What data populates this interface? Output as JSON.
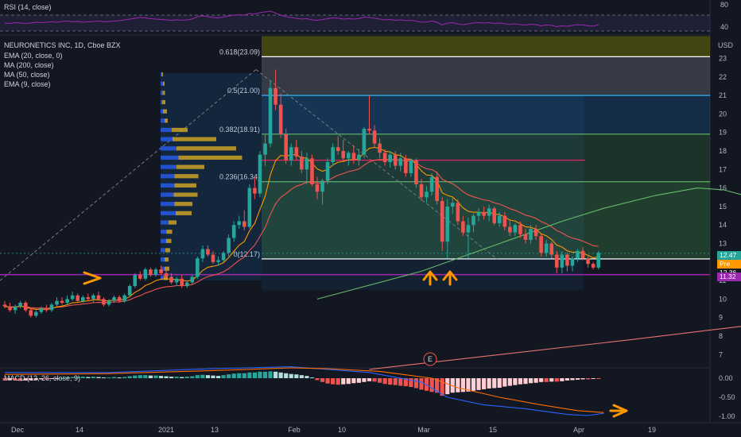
{
  "header": {
    "rsi_label": "RSI (14, close)",
    "symbol_label": "NEURONETICS INC, 1D, Cboe BZX",
    "indicators": [
      "EMA (20, close, 0)",
      "MA (200, close)",
      "MA (50, close)",
      "EMA (9, close)"
    ],
    "macd_label": "MACD (12, 26, close, 9)",
    "currency": "USD",
    "earnings_marker": "E"
  },
  "price_tags": {
    "last": "12.47",
    "pre_label": "Pre",
    "pre_value": "12.36",
    "support": "11.32"
  },
  "fib_labels": [
    {
      "text": "0.618(23.09)",
      "level": 23.09
    },
    {
      "text": "0.5(21.00)",
      "level": 21.0
    },
    {
      "text": "0.382(18.91)",
      "level": 18.91
    },
    {
      "text": "0.236(16.34)",
      "level": 16.34
    },
    {
      "text": "0(12.17)",
      "level": 12.17
    }
  ],
  "colors": {
    "up": "#26a69a",
    "down": "#ef5350",
    "ema20": "#ff9800",
    "ma200": "#e57373",
    "ma50": "#66bb6a",
    "ema9": "#ef5350",
    "rsi": "#9c27b0",
    "support": "#9c27b0",
    "arrow": "#ff9800"
  },
  "chart_data": {
    "type": "candlestick",
    "x_axis": {
      "ticks": [
        "Dec",
        "14",
        "2021",
        "13",
        "Feb",
        "10",
        "Mar",
        "15",
        "Apr",
        "19"
      ]
    },
    "price_axis": {
      "ticks": [
        "7",
        "8",
        "9",
        "10",
        "11",
        "12",
        "13",
        "14",
        "15",
        "16",
        "17",
        "18",
        "19",
        "20",
        "21",
        "22",
        "23"
      ],
      "range": [
        6.5,
        24
      ]
    },
    "rsi_axis": {
      "ticks": [
        "80",
        "40"
      ],
      "levels": [
        70,
        30
      ]
    },
    "macd_axis": {
      "ticks": [
        "0.00",
        "-0.50",
        "-1.00"
      ],
      "range": [
        -1.15,
        0.35
      ]
    },
    "candles": [
      [
        9.7,
        9.9,
        9.5,
        9.6
      ],
      [
        9.6,
        9.8,
        9.3,
        9.4
      ],
      [
        9.4,
        9.7,
        9.2,
        9.6
      ],
      [
        9.6,
        9.9,
        9.5,
        9.8
      ],
      [
        9.8,
        9.9,
        9.3,
        9.4
      ],
      [
        9.4,
        9.5,
        9.0,
        9.1
      ],
      [
        9.1,
        9.4,
        9.0,
        9.3
      ],
      [
        9.3,
        9.6,
        9.2,
        9.5
      ],
      [
        9.5,
        9.7,
        9.3,
        9.4
      ],
      [
        9.4,
        9.8,
        9.3,
        9.7
      ],
      [
        9.7,
        10.1,
        9.6,
        9.9
      ],
      [
        9.9,
        10.1,
        9.7,
        9.8
      ],
      [
        9.8,
        10.2,
        9.7,
        10.0
      ],
      [
        10.0,
        10.4,
        9.9,
        10.2
      ],
      [
        10.2,
        10.3,
        9.8,
        9.9
      ],
      [
        9.9,
        10.2,
        9.8,
        10.1
      ],
      [
        10.1,
        10.3,
        9.9,
        10.0
      ],
      [
        10.0,
        10.3,
        9.8,
        10.2
      ],
      [
        10.2,
        10.4,
        9.9,
        10.0
      ],
      [
        10.0,
        10.1,
        9.6,
        9.7
      ],
      [
        9.7,
        10.0,
        9.6,
        9.9
      ],
      [
        9.9,
        10.2,
        9.8,
        10.1
      ],
      [
        10.1,
        10.2,
        9.8,
        9.9
      ],
      [
        9.9,
        10.3,
        9.8,
        10.2
      ],
      [
        10.2,
        10.8,
        10.1,
        10.7
      ],
      [
        10.7,
        11.4,
        10.6,
        11.3
      ],
      [
        11.3,
        11.5,
        11.0,
        11.1
      ],
      [
        11.1,
        11.7,
        11.0,
        11.6
      ],
      [
        11.6,
        11.7,
        11.2,
        11.3
      ],
      [
        11.3,
        11.7,
        11.2,
        11.6
      ],
      [
        11.6,
        11.8,
        11.3,
        11.4
      ],
      [
        11.4,
        11.6,
        11.1,
        11.2
      ],
      [
        11.2,
        11.4,
        10.8,
        10.9
      ],
      [
        10.9,
        11.2,
        10.7,
        11.1
      ],
      [
        11.1,
        11.3,
        10.6,
        10.7
      ],
      [
        10.7,
        11.0,
        10.6,
        10.9
      ],
      [
        10.9,
        11.3,
        10.8,
        11.2
      ],
      [
        11.2,
        12.3,
        11.1,
        12.2
      ],
      [
        12.2,
        12.9,
        12.0,
        12.7
      ],
      [
        12.7,
        12.9,
        12.3,
        12.4
      ],
      [
        12.4,
        12.6,
        11.9,
        12.0
      ],
      [
        12.0,
        12.3,
        11.8,
        12.1
      ],
      [
        12.1,
        12.6,
        12.0,
        12.5
      ],
      [
        12.5,
        13.5,
        12.3,
        13.3
      ],
      [
        13.3,
        14.2,
        13.1,
        14.0
      ],
      [
        14.0,
        14.5,
        13.8,
        14.2
      ],
      [
        14.2,
        14.8,
        13.7,
        13.9
      ],
      [
        13.9,
        16.2,
        13.8,
        16.0
      ],
      [
        16.0,
        16.6,
        15.4,
        15.7
      ],
      [
        15.7,
        18.0,
        15.5,
        17.8
      ],
      [
        17.8,
        18.9,
        17.2,
        18.4
      ],
      [
        18.4,
        21.8,
        18.2,
        21.4
      ],
      [
        21.4,
        22.4,
        20.2,
        20.5
      ],
      [
        20.5,
        21.1,
        18.7,
        18.9
      ],
      [
        18.9,
        19.2,
        17.3,
        17.5
      ],
      [
        17.5,
        18.4,
        17.2,
        18.2
      ],
      [
        18.2,
        18.6,
        17.5,
        17.7
      ],
      [
        17.7,
        18.0,
        16.8,
        17.0
      ],
      [
        17.0,
        17.9,
        16.2,
        17.6
      ],
      [
        17.6,
        17.8,
        16.1,
        16.2
      ],
      [
        16.2,
        16.6,
        15.4,
        15.8
      ],
      [
        15.8,
        16.5,
        15.1,
        16.4
      ],
      [
        16.4,
        17.6,
        16.2,
        17.4
      ],
      [
        17.4,
        18.4,
        17.2,
        18.2
      ],
      [
        18.2,
        18.8,
        17.8,
        18.0
      ],
      [
        18.0,
        18.6,
        17.4,
        17.6
      ],
      [
        17.6,
        18.0,
        17.2,
        17.9
      ],
      [
        17.9,
        18.3,
        17.3,
        17.5
      ],
      [
        17.5,
        18.1,
        17.2,
        17.8
      ],
      [
        17.8,
        19.3,
        17.6,
        19.2
      ],
      [
        19.2,
        21.0,
        18.9,
        19.1
      ],
      [
        19.1,
        19.4,
        18.2,
        18.4
      ],
      [
        18.4,
        18.7,
        17.6,
        17.9
      ],
      [
        17.9,
        18.1,
        17.2,
        17.4
      ],
      [
        17.4,
        18.0,
        17.1,
        17.8
      ],
      [
        17.8,
        18.0,
        17.0,
        17.2
      ],
      [
        17.2,
        17.9,
        16.9,
        17.6
      ],
      [
        17.6,
        17.8,
        16.6,
        16.8
      ],
      [
        16.8,
        17.6,
        16.6,
        17.5
      ],
      [
        17.5,
        17.6,
        16.0,
        16.2
      ],
      [
        16.2,
        16.5,
        15.3,
        15.5
      ],
      [
        15.5,
        16.1,
        15.2,
        15.8
      ],
      [
        15.8,
        16.8,
        15.6,
        16.6
      ],
      [
        16.6,
        16.9,
        15.1,
        15.3
      ],
      [
        15.3,
        15.5,
        12.6,
        13.1
      ],
      [
        13.1,
        15.4,
        12.2,
        15.0
      ],
      [
        15.0,
        15.5,
        14.6,
        15.2
      ],
      [
        15.2,
        15.4,
        14.0,
        14.2
      ],
      [
        14.2,
        14.5,
        13.4,
        13.6
      ],
      [
        13.6,
        14.4,
        12.2,
        14.0
      ],
      [
        14.0,
        14.6,
        13.6,
        14.5
      ],
      [
        14.5,
        14.9,
        14.2,
        14.7
      ],
      [
        14.7,
        15.0,
        14.3,
        14.5
      ],
      [
        14.5,
        15.1,
        14.2,
        14.9
      ],
      [
        14.9,
        15.0,
        14.0,
        14.1
      ],
      [
        14.1,
        14.7,
        13.9,
        14.5
      ],
      [
        14.5,
        14.7,
        13.7,
        13.9
      ],
      [
        13.9,
        14.3,
        13.4,
        13.6
      ],
      [
        13.6,
        14.1,
        13.4,
        14.0
      ],
      [
        14.0,
        14.2,
        13.3,
        13.5
      ],
      [
        13.5,
        13.8,
        13.0,
        13.2
      ],
      [
        13.2,
        14.0,
        13.0,
        13.8
      ],
      [
        13.8,
        14.0,
        13.2,
        13.4
      ],
      [
        13.4,
        13.5,
        12.3,
        12.5
      ],
      [
        12.5,
        13.2,
        12.3,
        13.0
      ],
      [
        13.0,
        13.1,
        12.2,
        12.4
      ],
      [
        12.4,
        12.6,
        11.4,
        11.7
      ],
      [
        11.7,
        12.6,
        11.4,
        12.4
      ],
      [
        12.4,
        12.5,
        11.5,
        11.8
      ],
      [
        11.8,
        12.3,
        11.5,
        12.2
      ],
      [
        12.2,
        12.7,
        12.0,
        12.6
      ],
      [
        12.6,
        12.8,
        12.1,
        12.2
      ],
      [
        12.2,
        12.3,
        11.7,
        11.9
      ],
      [
        11.9,
        12.0,
        11.6,
        11.7
      ],
      [
        11.7,
        12.6,
        11.6,
        12.5
      ]
    ],
    "volume_profile": [
      {
        "price": 22.0,
        "green": 3,
        "red": 3
      },
      {
        "price": 21.5,
        "green": 6,
        "red": 4
      },
      {
        "price": 21.0,
        "green": 5,
        "red": 6
      },
      {
        "price": 20.5,
        "green": 4,
        "red": 8
      },
      {
        "price": 20.0,
        "green": 6,
        "red": 10
      },
      {
        "price": 19.5,
        "green": 10,
        "red": 8
      },
      {
        "price": 19.0,
        "green": 28,
        "red": 40
      },
      {
        "price": 18.5,
        "green": 30,
        "red": 110
      },
      {
        "price": 18.0,
        "green": 40,
        "red": 150
      },
      {
        "price": 17.5,
        "green": 45,
        "red": 160
      },
      {
        "price": 17.0,
        "green": 40,
        "red": 70
      },
      {
        "price": 16.5,
        "green": 35,
        "red": 60
      },
      {
        "price": 16.0,
        "green": 35,
        "red": 55
      },
      {
        "price": 15.5,
        "green": 33,
        "red": 60
      },
      {
        "price": 15.0,
        "green": 35,
        "red": 45
      },
      {
        "price": 14.5,
        "green": 38,
        "red": 40
      },
      {
        "price": 14.0,
        "green": 20,
        "red": 20
      },
      {
        "price": 13.5,
        "green": 15,
        "red": 14
      },
      {
        "price": 13.0,
        "green": 14,
        "red": 13
      },
      {
        "price": 12.5,
        "green": 12,
        "red": 12
      },
      {
        "price": 12.0,
        "green": 10,
        "red": 10
      },
      {
        "price": 11.5,
        "green": 10,
        "red": 12
      },
      {
        "price": 11.0,
        "green": 8,
        "red": 10
      }
    ],
    "ma50": [
      [
        60,
        10.0
      ],
      [
        80,
        11.5
      ],
      [
        95,
        13.0
      ],
      [
        107,
        14.2
      ],
      [
        115,
        14.9
      ],
      [
        125,
        15.6
      ],
      [
        133,
        16.0
      ],
      [
        138,
        15.9
      ],
      [
        142,
        15.6
      ],
      [
        145,
        15.3
      ]
    ],
    "ma200": [
      [
        70,
        6.2
      ],
      [
        95,
        7.0
      ],
      [
        120,
        7.8
      ],
      [
        145,
        8.65
      ]
    ],
    "rsi_values": [
      50,
      49,
      51,
      50,
      49,
      50,
      52,
      51,
      52,
      53,
      52,
      54,
      55,
      53,
      54,
      52,
      53,
      54,
      55,
      53,
      54,
      55,
      56,
      58,
      60,
      62,
      64,
      63,
      61,
      60,
      59,
      58,
      57,
      58,
      57,
      58,
      60,
      66,
      68,
      66,
      64,
      63,
      65,
      68,
      70,
      71,
      70,
      74,
      73,
      76,
      78,
      80,
      75,
      70,
      66,
      64,
      62,
      60,
      61,
      58,
      57,
      59,
      61,
      63,
      62,
      60,
      61,
      60,
      61,
      65,
      64,
      62,
      60,
      58,
      59,
      57,
      58,
      56,
      57,
      55,
      52,
      53,
      55,
      52,
      45,
      50,
      51,
      48,
      46,
      48,
      50,
      51,
      50,
      51,
      49,
      50,
      48,
      47,
      48,
      46,
      45,
      47,
      46,
      43,
      45,
      44,
      41,
      43,
      42,
      44,
      46,
      45,
      43,
      42,
      46
    ],
    "macd_hist": [
      -0.06,
      -0.05,
      -0.06,
      -0.07,
      -0.06,
      -0.05,
      -0.04,
      -0.03,
      -0.03,
      -0.02,
      -0.01,
      0.0,
      0.02,
      0.03,
      0.03,
      0.04,
      0.03,
      0.04,
      0.03,
      0.02,
      0.02,
      0.03,
      0.02,
      0.03,
      0.05,
      0.07,
      0.08,
      0.08,
      0.07,
      0.07,
      0.06,
      0.05,
      0.04,
      0.04,
      0.03,
      0.04,
      0.05,
      0.08,
      0.09,
      0.08,
      0.07,
      0.06,
      0.08,
      0.1,
      0.12,
      0.13,
      0.13,
      0.15,
      0.15,
      0.17,
      0.17,
      0.18,
      0.17,
      0.15,
      0.13,
      0.11,
      0.1,
      0.08,
      0.06,
      0.02,
      -0.05,
      -0.1,
      -0.14,
      -0.16,
      -0.17,
      -0.16,
      -0.15,
      -0.13,
      -0.12,
      -0.1,
      -0.08,
      -0.09,
      -0.12,
      -0.15,
      -0.17,
      -0.18,
      -0.2,
      -0.21,
      -0.23,
      -0.26,
      -0.3,
      -0.33,
      -0.36,
      -0.38,
      -0.46,
      -0.42,
      -0.38,
      -0.37,
      -0.36,
      -0.35,
      -0.33,
      -0.31,
      -0.29,
      -0.27,
      -0.26,
      -0.25,
      -0.22,
      -0.2,
      -0.18,
      -0.16,
      -0.15,
      -0.13,
      -0.12,
      -0.1,
      -0.1,
      -0.09,
      -0.09,
      -0.08,
      -0.06,
      -0.05,
      -0.04,
      -0.03,
      -0.03,
      -0.02,
      -0.02
    ],
    "macd_line": [
      [
        0,
        0.15
      ],
      [
        20,
        0.15
      ],
      [
        40,
        0.25
      ],
      [
        55,
        0.3
      ],
      [
        60,
        0.25
      ],
      [
        70,
        0.15
      ],
      [
        80,
        -0.1
      ],
      [
        85,
        -0.5
      ],
      [
        92,
        -0.7
      ],
      [
        100,
        -0.8
      ],
      [
        108,
        -0.95
      ],
      [
        112,
        -0.98
      ],
      [
        115,
        -0.92
      ]
    ],
    "macd_signal": [
      [
        0,
        0.1
      ],
      [
        20,
        0.12
      ],
      [
        40,
        0.2
      ],
      [
        55,
        0.27
      ],
      [
        62,
        0.25
      ],
      [
        72,
        0.18
      ],
      [
        82,
        0.0
      ],
      [
        87,
        -0.25
      ],
      [
        95,
        -0.5
      ],
      [
        103,
        -0.7
      ],
      [
        110,
        -0.85
      ],
      [
        115,
        -0.9
      ]
    ]
  }
}
